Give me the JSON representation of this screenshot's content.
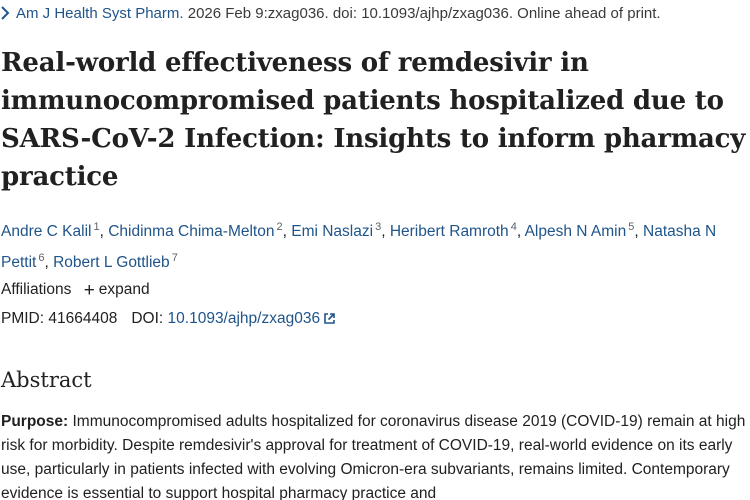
{
  "citation": {
    "journal": "Am J Health Syst Pharm.",
    "details": "2026 Feb 9:zxag036. doi: 10.1093/ajhp/zxag036. Online ahead of print."
  },
  "title": "Real-world effectiveness of remdesivir in immunocompromised patients hospitalized due to SARS-CoV-2 Infection: Insights to inform pharmacy practice",
  "authors": [
    {
      "name": "Andre C Kalil",
      "sup": "1"
    },
    {
      "name": "Chidinma Chima-Melton",
      "sup": "2"
    },
    {
      "name": "Emi Naslazi",
      "sup": "3"
    },
    {
      "name": "Heribert Ramroth",
      "sup": "4"
    },
    {
      "name": "Alpesh N Amin",
      "sup": "5"
    },
    {
      "name": "Natasha N Pettit",
      "sup": "6"
    },
    {
      "name": "Robert L Gottlieb",
      "sup": "7"
    }
  ],
  "affiliations": {
    "label": "Affiliations",
    "expand_label": "expand"
  },
  "ids": {
    "pmid_label": "PMID:",
    "pmid": "41664408",
    "doi_label": "DOI:",
    "doi": "10.1093/ajhp/zxag036"
  },
  "abstract": {
    "heading": "Abstract",
    "purpose_label": "Purpose:",
    "purpose_text": "Immunocompromised adults hospitalized for coronavirus disease 2019 (COVID-19) remain at high risk for morbidity. Despite remdesivir's approval for treatment of COVID-19, real-world evidence on its early use, particularly in patients infected with evolving Omicron-era subvariants, remains limited. Contemporary evidence is essential to support hospital pharmacy practice and"
  },
  "colors": {
    "link": "#20558a",
    "text": "#212121"
  },
  "icons": [
    "chevron-right-icon",
    "plus-icon",
    "external-link-icon"
  ]
}
